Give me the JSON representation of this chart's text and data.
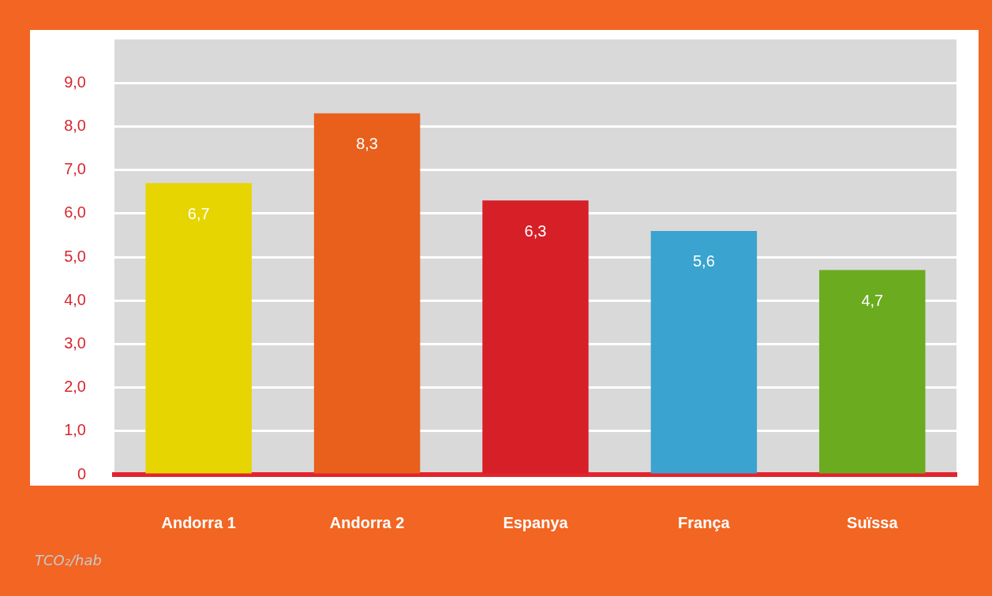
{
  "chart_data": {
    "type": "bar",
    "ylabel": "TCO₂/hab",
    "categories": [
      "Andorra 1",
      "Andorra 2",
      "Espanya",
      "França",
      "Suïssa"
    ],
    "values": [
      6.7,
      8.3,
      6.3,
      5.6,
      4.7
    ],
    "colors": [
      "#e6d500",
      "#e8601c",
      "#d61f27",
      "#3aa3cf",
      "#6aab1f"
    ],
    "value_labels": [
      "6,7",
      "8,3",
      "6,3",
      "5,6",
      "4,7"
    ],
    "ylim": [
      0,
      10
    ],
    "yticks": [
      {
        "value": 0,
        "label": "0"
      },
      {
        "value": 1,
        "label": "1,0"
      },
      {
        "value": 2,
        "label": "2,0"
      },
      {
        "value": 3,
        "label": "3,0"
      },
      {
        "value": 4,
        "label": "4,0"
      },
      {
        "value": 5,
        "label": "5,0"
      },
      {
        "value": 6,
        "label": "6,0"
      },
      {
        "value": 7,
        "label": "7,0"
      },
      {
        "value": 8,
        "label": "8,0"
      },
      {
        "value": 9,
        "label": "9,0"
      }
    ],
    "grid": "y",
    "legend": false
  }
}
